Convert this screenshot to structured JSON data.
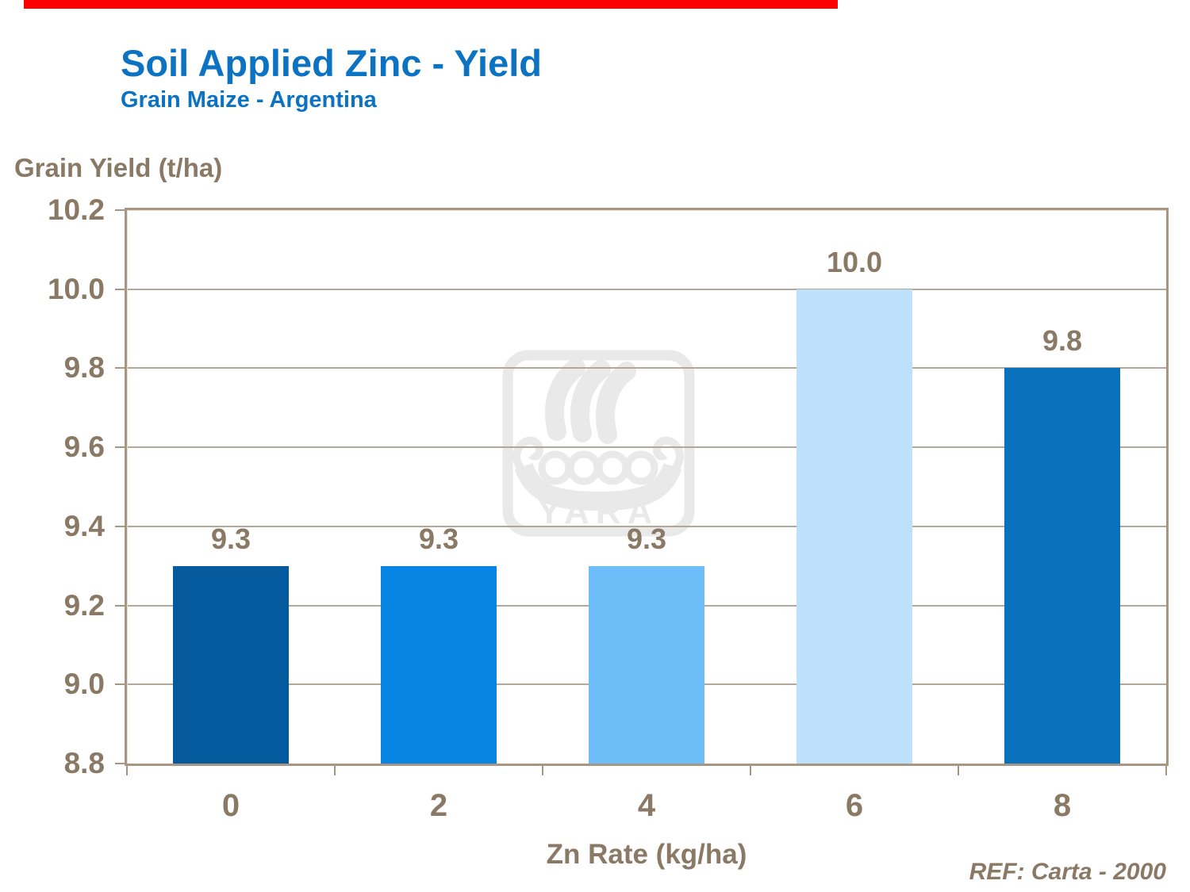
{
  "accent_bar": {
    "color": "#fe0000"
  },
  "header": {
    "title": "Soil Applied Zinc - Yield",
    "subtitle": "Grain Maize - Argentina"
  },
  "chart_data": {
    "type": "bar",
    "title": "Soil Applied Zinc - Yield",
    "subtitle": "Grain Maize - Argentina",
    "categories": [
      "0",
      "2",
      "4",
      "6",
      "8"
    ],
    "values": [
      9.3,
      9.3,
      9.3,
      10.0,
      9.8
    ],
    "data_labels": [
      "9.3",
      "9.3",
      "9.3",
      "10.0",
      "9.8"
    ],
    "bar_colors": [
      "#05599d",
      "#0885e2",
      "#6cbdf8",
      "#bde0fb",
      "#0a71bc"
    ],
    "xlabel": "Zn Rate (kg/ha)",
    "ylabel": "Grain Yield (t/ha)",
    "ylim": [
      8.8,
      10.2
    ],
    "yticks": [
      10.2,
      10.0,
      9.8,
      9.6,
      9.4,
      9.2,
      9.0,
      8.8
    ],
    "grid": true,
    "legend": false
  },
  "watermark": {
    "label": "YARA"
  },
  "footer": {
    "reference": "REF: Carta - 2000"
  },
  "colors": {
    "title_blue": "#0c72c2",
    "axis_text": "#8a7964",
    "gridline": "#b3a79a",
    "frame": "#a69682",
    "watermark": "#e9e9e9",
    "background": "#ffffff"
  }
}
